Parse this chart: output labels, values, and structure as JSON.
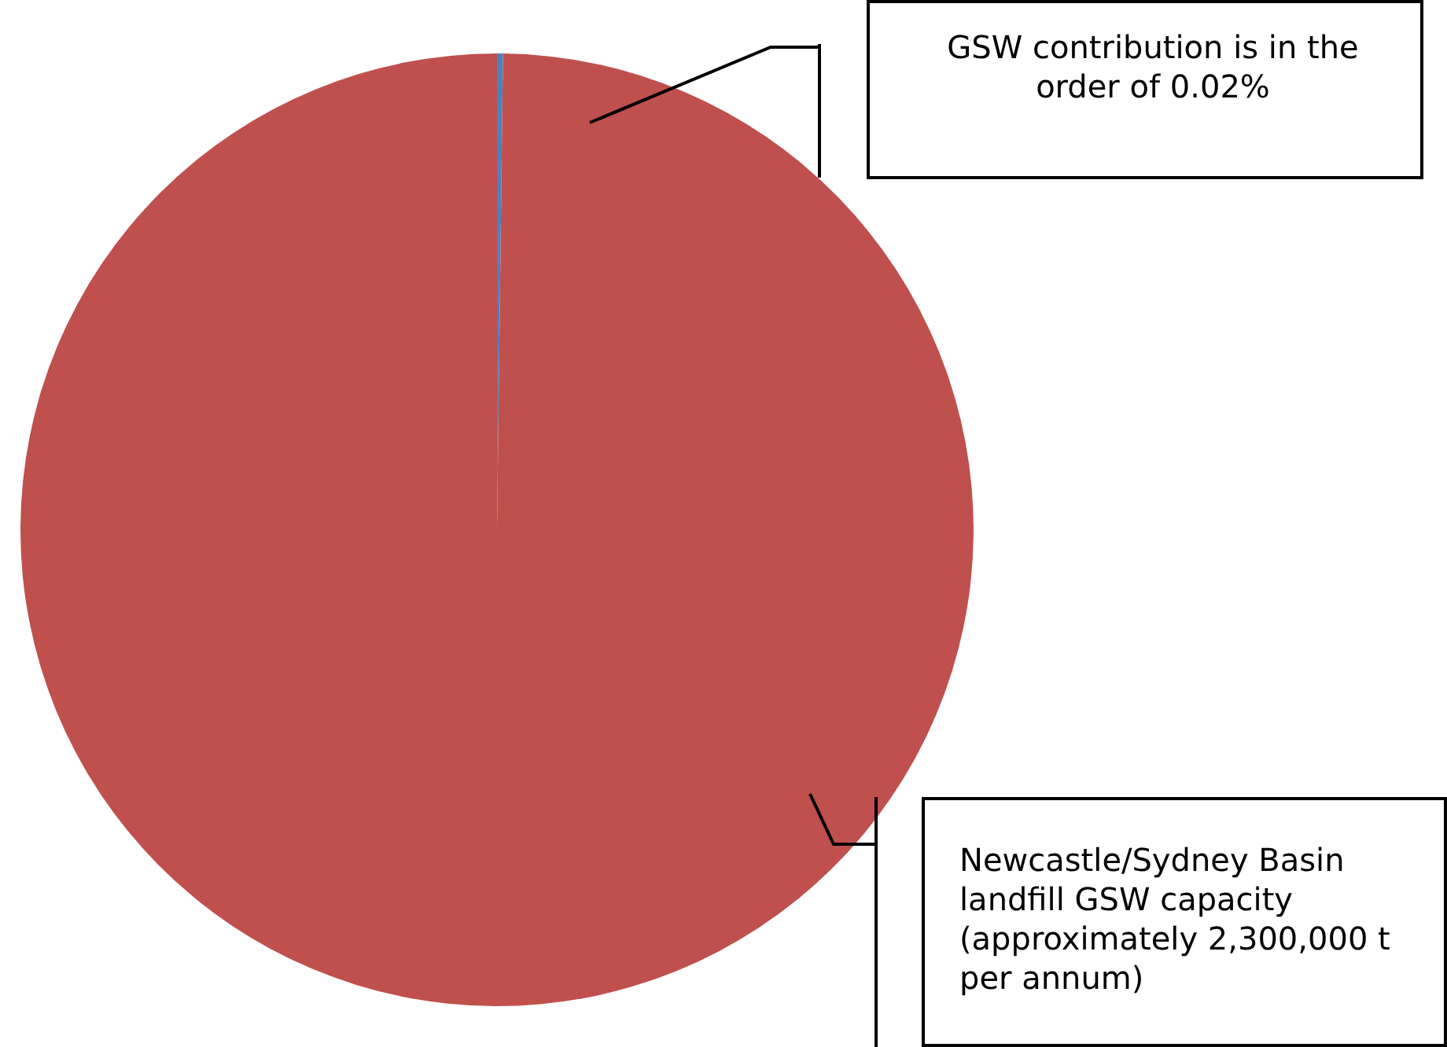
{
  "chart_data": {
    "type": "pie",
    "categories": [
      null,
      null
    ],
    "values": [
      0.2,
      99.8
    ],
    "colors": [
      "#4f81bd",
      "#c0504d"
    ],
    "annotations": [
      "GSW contribution is in the order of 0.02%",
      "Newcastle/Sydney Basin landfill GSW capacity (approximately 2,300,000 t per annum)"
    ],
    "legend": false
  }
}
